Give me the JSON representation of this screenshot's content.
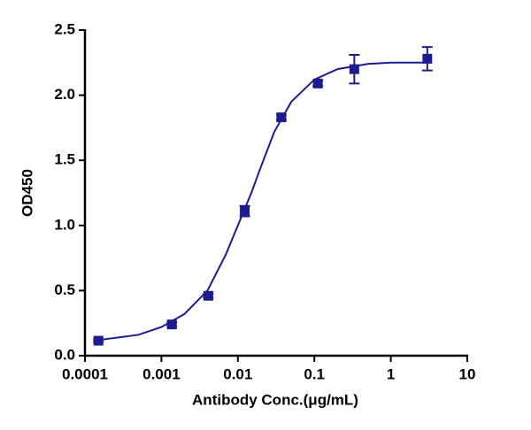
{
  "chart_data": {
    "type": "scatter",
    "xlabel": "Antibody Conc.(μg/mL)",
    "ylabel": "OD450",
    "x_log": true,
    "xlim": [
      0.0001,
      10
    ],
    "xticks": [
      0.0001,
      0.001,
      0.01,
      0.1,
      1,
      10
    ],
    "ylim": [
      0,
      2.5
    ],
    "yticks": [
      {
        "value": 0,
        "label": "0.0"
      },
      {
        "value": 0.5,
        "label": "0.5"
      },
      {
        "value": 1,
        "label": "1.0"
      },
      {
        "value": 1.5,
        "label": "1.5"
      },
      {
        "value": 2,
        "label": "2.0"
      },
      {
        "value": 2.5,
        "label": "2.5"
      }
    ],
    "color": "#1c1c8f",
    "x": [
      0.00015,
      0.00137,
      0.0041,
      0.0123,
      0.037,
      0.111,
      0.333,
      3
    ],
    "values": [
      0.115,
      0.24,
      0.46,
      1.11,
      1.83,
      2.09,
      2.2,
      2.28
    ],
    "errors": [
      0.01,
      0.015,
      0.015,
      0.04,
      0.02,
      0.02,
      0.11,
      0.09
    ],
    "curve": {
      "x": [
        0.00015,
        0.0005,
        0.001,
        0.002,
        0.004,
        0.007,
        0.01,
        0.015,
        0.02,
        0.03,
        0.05,
        0.1,
        0.2,
        0.5,
        1,
        3
      ],
      "y": [
        0.12,
        0.16,
        0.22,
        0.32,
        0.5,
        0.78,
        1.0,
        1.25,
        1.45,
        1.72,
        1.95,
        2.12,
        2.2,
        2.24,
        2.25,
        2.25
      ]
    }
  }
}
